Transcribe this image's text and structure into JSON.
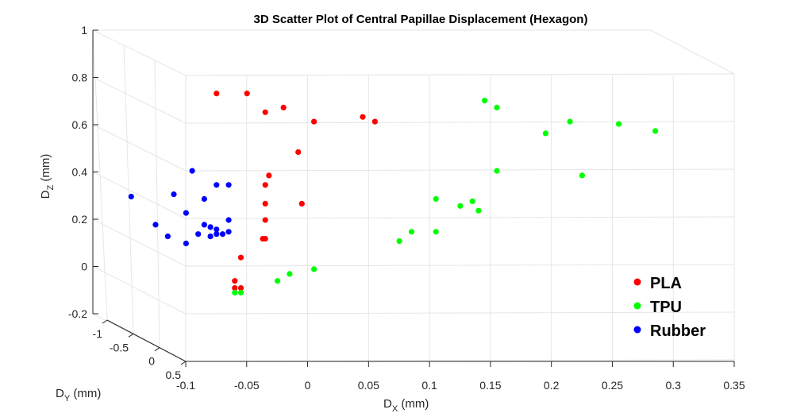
{
  "chart_data": {
    "type": "scatter",
    "title": "3D Scatter Plot of Central Papillae Displacement (Hexagon)",
    "xlabel_main": "D",
    "xlabel_sub": "X",
    "xlabel_unit": " (mm)",
    "ylabel_main": "D",
    "ylabel_sub": "Y",
    "ylabel_unit": " (mm)",
    "zlabel_main": "D",
    "zlabel_sub": "Z",
    "zlabel_unit": " (mm)",
    "xlim": [
      -0.1,
      0.35
    ],
    "ylim": [
      -1,
      0.5
    ],
    "zlim": [
      -0.2,
      1
    ],
    "x_ticks": [
      "-0.1",
      "-0.05",
      "0",
      "0.05",
      "0.1",
      "0.15",
      "0.2",
      "0.25",
      "0.3",
      "0.35"
    ],
    "y_ticks": [
      "-1",
      "-0.5",
      "0",
      "0.5"
    ],
    "z_ticks": [
      "-0.2",
      "0",
      "0.2",
      "0.4",
      "0.6",
      "0.8",
      "1"
    ],
    "grid": true,
    "legend_position": "bottom-right",
    "series": [
      {
        "name": "PLA",
        "color": "#ff0000",
        "points": [
          [
            -0.05,
            0.74
          ],
          [
            -0.025,
            0.74
          ],
          [
            -0.01,
            0.66
          ],
          [
            0.005,
            0.68
          ],
          [
            0.03,
            0.62
          ],
          [
            0.07,
            0.64
          ],
          [
            0.08,
            0.62
          ],
          [
            0.017,
            0.49
          ],
          [
            -0.007,
            0.39
          ],
          [
            -0.01,
            0.35
          ],
          [
            -0.01,
            0.27
          ],
          [
            0.02,
            0.27
          ],
          [
            -0.01,
            0.2
          ],
          [
            -0.012,
            0.12
          ],
          [
            -0.01,
            0.12
          ],
          [
            -0.03,
            0.04
          ],
          [
            -0.035,
            -0.06
          ],
          [
            -0.035,
            -0.09
          ],
          [
            -0.03,
            -0.09
          ]
        ]
      },
      {
        "name": "TPU",
        "color": "#00ff00",
        "points": [
          [
            0.17,
            0.71
          ],
          [
            0.18,
            0.68
          ],
          [
            0.24,
            0.62
          ],
          [
            0.22,
            0.57
          ],
          [
            0.28,
            0.61
          ],
          [
            0.31,
            0.58
          ],
          [
            0.18,
            0.41
          ],
          [
            0.25,
            0.39
          ],
          [
            0.13,
            0.29
          ],
          [
            0.16,
            0.28
          ],
          [
            0.15,
            0.26
          ],
          [
            0.165,
            0.24
          ],
          [
            0.1,
            0.11
          ],
          [
            0.11,
            0.15
          ],
          [
            0.13,
            0.15
          ],
          [
            0.03,
            -0.01
          ],
          [
            0.01,
            -0.03
          ],
          [
            0.0,
            -0.06
          ],
          [
            -0.035,
            -0.11
          ],
          [
            -0.03,
            -0.11
          ]
        ]
      },
      {
        "name": "Rubber",
        "color": "#0000ff",
        "points": [
          [
            -0.12,
            0.3
          ],
          [
            -0.1,
            0.18
          ],
          [
            -0.085,
            0.31
          ],
          [
            -0.075,
            0.23
          ],
          [
            -0.07,
            0.41
          ],
          [
            -0.06,
            0.29
          ],
          [
            -0.05,
            0.35
          ],
          [
            -0.04,
            0.35
          ],
          [
            -0.06,
            0.18
          ],
          [
            -0.055,
            0.17
          ],
          [
            -0.05,
            0.16
          ],
          [
            -0.04,
            0.2
          ],
          [
            -0.045,
            0.14
          ],
          [
            -0.05,
            0.14
          ],
          [
            -0.055,
            0.13
          ],
          [
            -0.065,
            0.14
          ],
          [
            -0.09,
            0.13
          ],
          [
            -0.075,
            0.1
          ],
          [
            -0.04,
            0.15
          ]
        ]
      }
    ]
  }
}
